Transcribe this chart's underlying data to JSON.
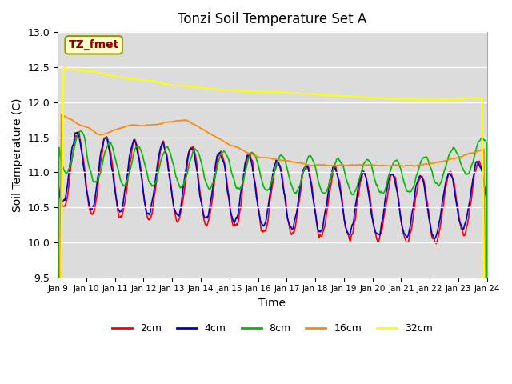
{
  "title": "Tonzi Soil Temperature Set A",
  "xlabel": "Time",
  "ylabel": "Soil Temperature (C)",
  "ylim": [
    9.5,
    13.0
  ],
  "annotation_text": "TZ_fmet",
  "annotation_color": "#8B0000",
  "annotation_bg": "#FFFFCC",
  "background_color": "#DCDCDC",
  "tick_labels": [
    "Jan 9",
    "Jan 10",
    "Jan 11",
    "Jan 12",
    "Jan 13",
    "Jan 14",
    "Jan 15",
    "Jan 16",
    "Jan 17",
    "Jan 18",
    "Jan 19",
    "Jan 20",
    "Jan 21",
    "Jan 22",
    "Jan 23",
    "Jan 24"
  ],
  "series": {
    "2cm": {
      "color": "#FF0000",
      "linewidth": 1.2
    },
    "4cm": {
      "color": "#0000CC",
      "linewidth": 1.2
    },
    "8cm": {
      "color": "#00BB00",
      "linewidth": 1.2
    },
    "16cm": {
      "color": "#FF8800",
      "linewidth": 1.2
    },
    "32cm": {
      "color": "#FFFF00",
      "linewidth": 1.5
    }
  }
}
